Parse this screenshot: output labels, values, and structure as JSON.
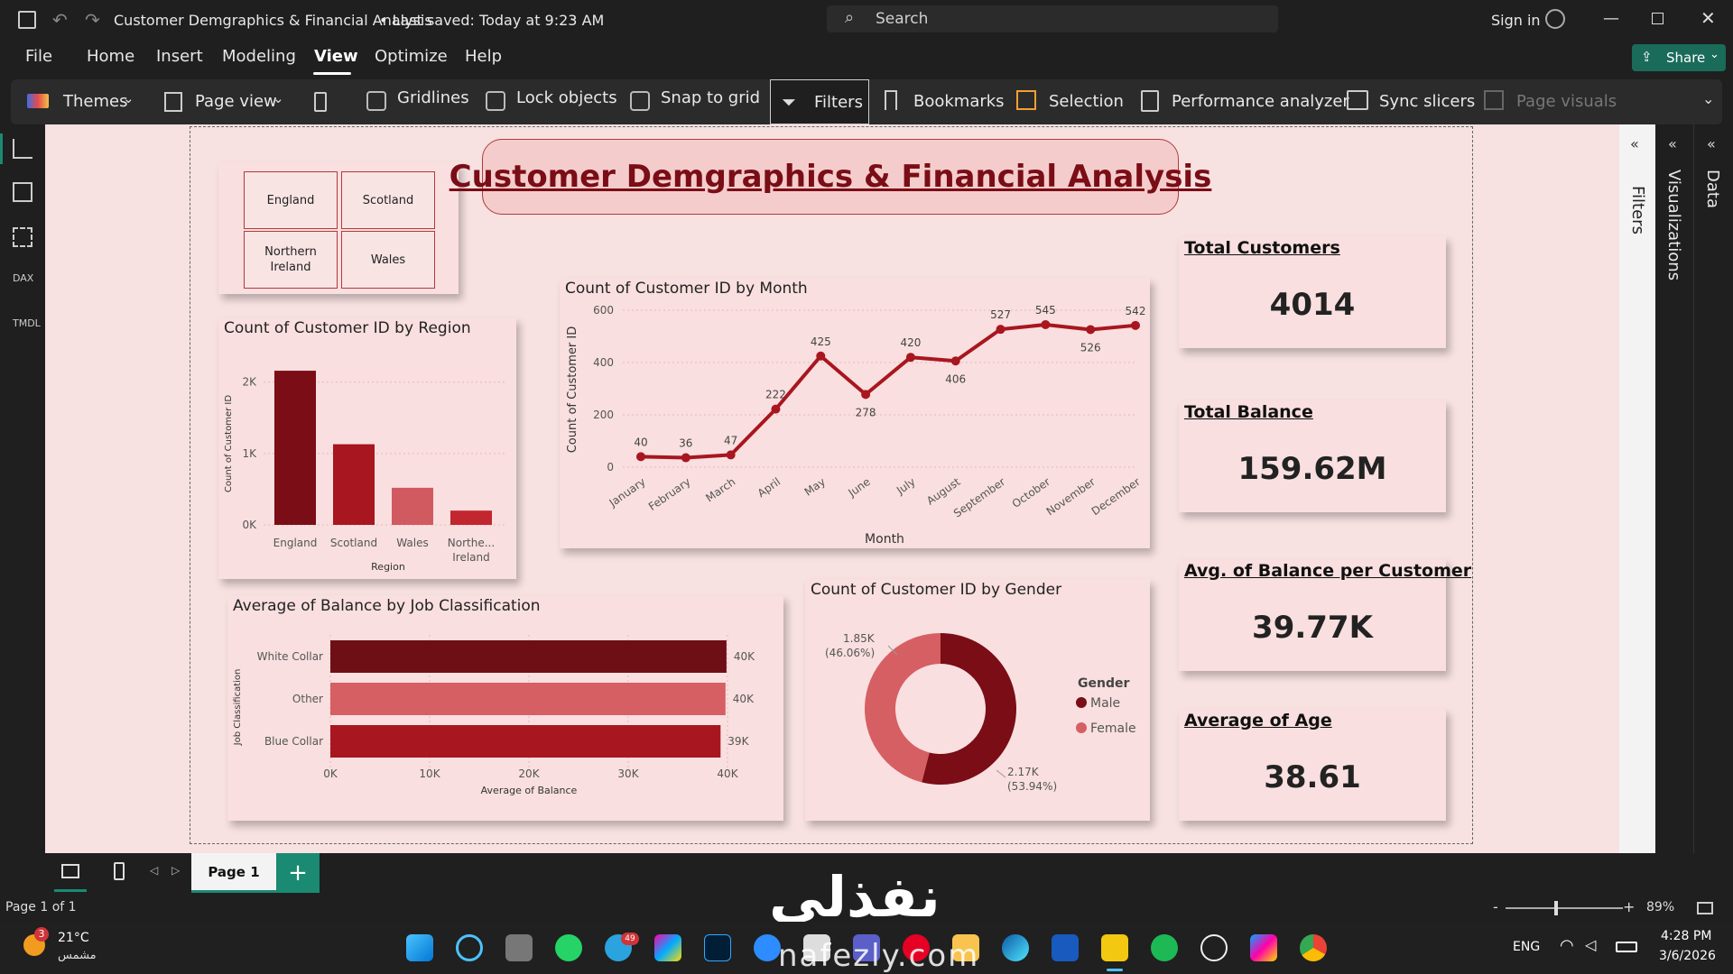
{
  "titlebar": {
    "doc_title": "Customer Demgraphics & Financial Analysis",
    "saved_status": "• Last saved: Today at 9:23 AM",
    "search_placeholder": "Search",
    "sign_in": "Sign in"
  },
  "menu": {
    "items": [
      "File",
      "Home",
      "Insert",
      "Modeling",
      "View",
      "Optimize",
      "Help"
    ],
    "active": "View",
    "share_label": "Share"
  },
  "ribbon": {
    "themes": "Themes",
    "page_view": "Page view",
    "gridlines": "Gridlines",
    "lock_objects": "Lock objects",
    "snap_to_grid": "Snap to grid",
    "filters": "Filters",
    "bookmarks": "Bookmarks",
    "selection": "Selection",
    "performance_analyzer": "Performance analyzer",
    "sync_slicers": "Sync slicers",
    "page_visuals": "Page visuals"
  },
  "report": {
    "title": "Customer Demgraphics & Financial Analysis",
    "slicer": [
      "England",
      "Scotland",
      "Northern Ireland",
      "Wales"
    ],
    "kpis": [
      {
        "label": "Total Customers",
        "value": "4014"
      },
      {
        "label": "Total Balance",
        "value": "159.62M"
      },
      {
        "label": "Avg. of Balance per Customer",
        "value": "39.77K"
      },
      {
        "label": "Average of Age",
        "value": "38.61"
      }
    ],
    "region_chart": {
      "title": "Count of Customer ID by Region"
    },
    "month_chart": {
      "title": "Count of Customer ID by Month"
    },
    "job_chart": {
      "title": "Average of Balance by Job Classification"
    },
    "gender_chart": {
      "title": "Count of Customer ID by Gender"
    }
  },
  "chart_data": [
    {
      "type": "bar",
      "title": "Count of Customer ID by Region",
      "categories": [
        "England",
        "Scotland",
        "Wales",
        "Northern Ireland"
      ],
      "tick_labels": [
        "England",
        "Scotland",
        "Wales",
        "Northe...",
        "Ireland"
      ],
      "values": [
        2160,
        1130,
        520,
        200
      ],
      "xlabel": "Region",
      "ylabel": "Count of Customer ID",
      "yticks": [
        "0K",
        "1K",
        "2K"
      ],
      "ylim": [
        0,
        2300
      ],
      "colors": [
        "#7a0d16",
        "#a8161f",
        "#d05a5f",
        "#c2262e"
      ]
    },
    {
      "type": "line",
      "title": "Count of Customer ID by Month",
      "categories": [
        "January",
        "February",
        "March",
        "April",
        "May",
        "June",
        "July",
        "August",
        "September",
        "October",
        "November",
        "December"
      ],
      "values": [
        40,
        36,
        47,
        222,
        425,
        278,
        420,
        406,
        527,
        545,
        526,
        542
      ],
      "xlabel": "Month",
      "ylabel": "Count of Customer ID",
      "yticks": [
        "0",
        "200",
        "400",
        "600"
      ],
      "ylim": [
        0,
        600
      ],
      "color": "#a8161f"
    },
    {
      "type": "bar",
      "orientation": "horizontal",
      "title": "Average of Balance by Job Classification",
      "categories": [
        "White Collar",
        "Other",
        "Blue Collar"
      ],
      "values": [
        39900,
        39800,
        39300
      ],
      "data_labels": [
        "40K",
        "40K",
        "39K"
      ],
      "xlabel": "Average of Balance",
      "ylabel": "Job Classification",
      "xticks": [
        "0K",
        "10K",
        "20K",
        "30K",
        "40K"
      ],
      "xlim": [
        0,
        40000
      ],
      "colors": [
        "#6e0f15",
        "#d65f63",
        "#a8161f"
      ]
    },
    {
      "type": "pie",
      "donut": true,
      "title": "Count of Customer ID by Gender",
      "legend_title": "Gender",
      "categories": [
        "Male",
        "Female"
      ],
      "values": [
        2170,
        1850
      ],
      "percent_labels": [
        "(53.94%)",
        "(46.06%)"
      ],
      "value_labels": [
        "2.17K",
        "1.85K"
      ],
      "colors": [
        "#7a0d16",
        "#d65f63"
      ]
    }
  ],
  "pane_labels": {
    "filters": "Filters",
    "visualizations": "Visualizations",
    "data": "Data"
  },
  "pages": {
    "tab": "Page 1",
    "status": "Page 1 of 1",
    "zoom": "89%"
  },
  "taskbar": {
    "weather_temp": "21°C",
    "weather_text": "مشمس",
    "badge": "3",
    "telegram_badge": "49",
    "lang": "ENG",
    "time": "4:28 PM",
    "date": "3/6/2026",
    "watermark_text": "نفذلي",
    "watermark_domain": "nafezly.com"
  }
}
